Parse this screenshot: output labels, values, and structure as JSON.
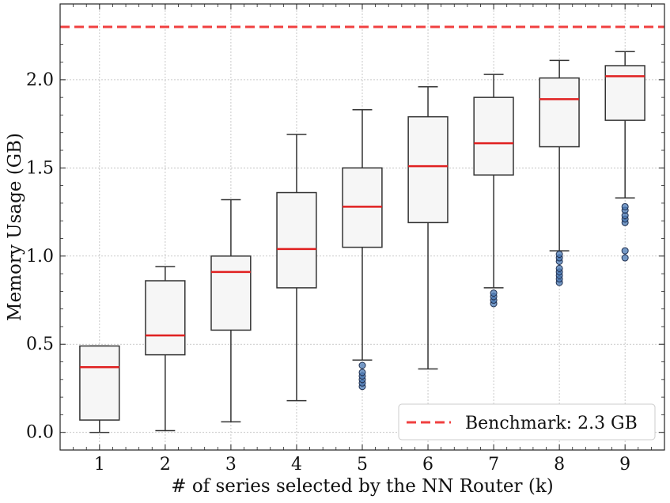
{
  "chart_data": {
    "type": "boxplot",
    "title": "",
    "xlabel": "# of series selected by the NN Router (k)",
    "ylabel": "Memory Usage (GB)",
    "ylim": [
      -0.1,
      2.43
    ],
    "y_ticks": [
      0.0,
      0.5,
      1.0,
      1.5,
      2.0
    ],
    "y_tick_labels": [
      "0.0",
      "0.5",
      "1.0",
      "1.5",
      "2.0"
    ],
    "grid": true,
    "categories": [
      "1",
      "2",
      "3",
      "4",
      "5",
      "6",
      "7",
      "8",
      "9"
    ],
    "boxes": [
      {
        "label": "1",
        "whisker_low": 0.0,
        "q1": 0.07,
        "median": 0.37,
        "q3": 0.49,
        "whisker_high": 0.49,
        "outliers": []
      },
      {
        "label": "2",
        "whisker_low": 0.01,
        "q1": 0.44,
        "median": 0.55,
        "q3": 0.86,
        "whisker_high": 0.94,
        "outliers": []
      },
      {
        "label": "3",
        "whisker_low": 0.06,
        "q1": 0.58,
        "median": 0.91,
        "q3": 1.0,
        "whisker_high": 1.32,
        "outliers": []
      },
      {
        "label": "4",
        "whisker_low": 0.18,
        "q1": 0.82,
        "median": 1.04,
        "q3": 1.36,
        "whisker_high": 1.69,
        "outliers": []
      },
      {
        "label": "5",
        "whisker_low": 0.41,
        "q1": 1.05,
        "median": 1.28,
        "q3": 1.5,
        "whisker_high": 1.83,
        "outliers": [
          0.26,
          0.28,
          0.3,
          0.32,
          0.34,
          0.38
        ]
      },
      {
        "label": "6",
        "whisker_low": 0.36,
        "q1": 1.19,
        "median": 1.51,
        "q3": 1.79,
        "whisker_high": 1.96,
        "outliers": []
      },
      {
        "label": "7",
        "whisker_low": 0.82,
        "q1": 1.46,
        "median": 1.64,
        "q3": 1.9,
        "whisker_high": 2.03,
        "outliers": [
          0.73,
          0.75,
          0.77,
          0.79
        ]
      },
      {
        "label": "8",
        "whisker_low": 1.03,
        "q1": 1.62,
        "median": 1.89,
        "q3": 2.01,
        "whisker_high": 2.11,
        "outliers": [
          0.85,
          0.87,
          0.89,
          0.91,
          0.93,
          0.97,
          0.99,
          1.01
        ]
      },
      {
        "label": "9",
        "whisker_low": 1.33,
        "q1": 1.77,
        "median": 2.02,
        "q3": 2.08,
        "whisker_high": 2.16,
        "outliers": [
          0.99,
          1.03,
          1.19,
          1.21,
          1.23,
          1.26,
          1.28
        ]
      }
    ],
    "reference_line": {
      "value": 2.3,
      "style": "dashed",
      "color": "#f04040"
    },
    "legend": {
      "placement": "bottom-right",
      "entries": [
        {
          "label": "Benchmark: 2.3 GB",
          "style": "dashed",
          "color": "#f04040"
        }
      ]
    },
    "colors": {
      "box_fill": "#f6f6f6",
      "box_edge": "#333333",
      "median": "#e02020",
      "outlier_fill": "#4a7ab5",
      "outlier_edge": "#1f2f4f",
      "grid": "#bbbbbb"
    }
  }
}
